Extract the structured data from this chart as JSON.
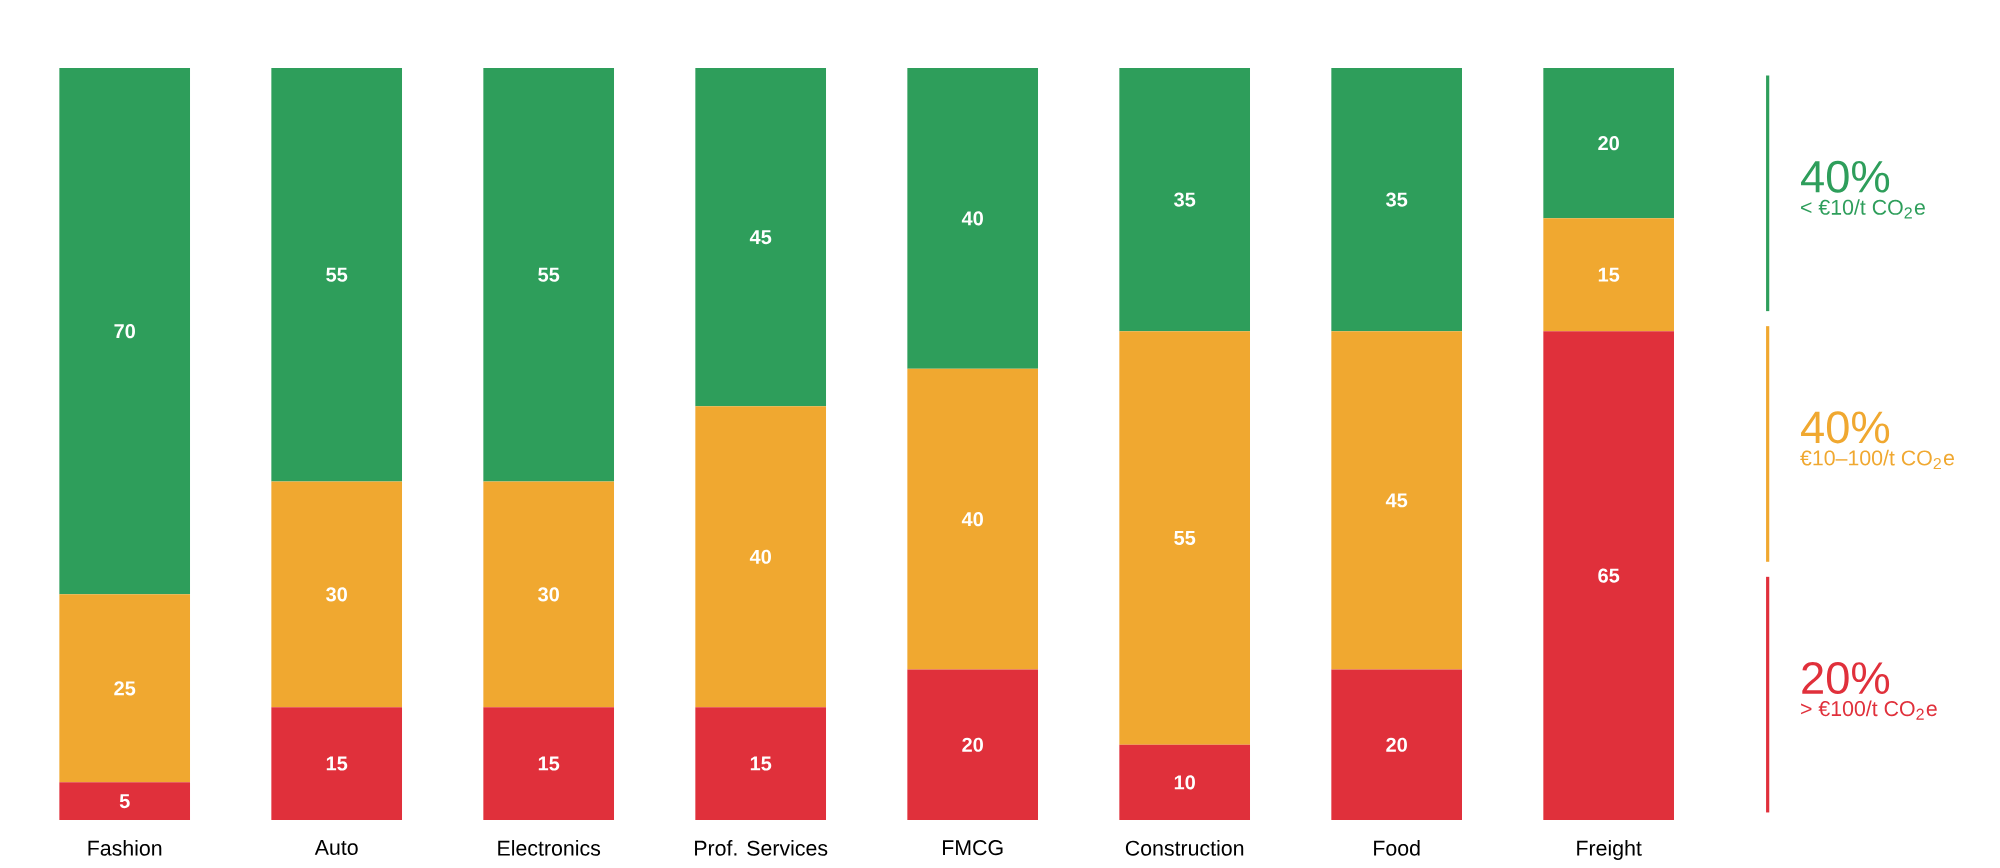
{
  "chart_data": {
    "type": "bar",
    "stacked": true,
    "data_labels": true,
    "legend": "right",
    "categories": [
      "Fashion",
      "Auto",
      "Electronics",
      "Prof. Services",
      "FMCG",
      "Construction",
      "Food",
      "Freight"
    ],
    "series": [
      {
        "name": "> €100/t CO$_{2}$e",
        "color": "#e0303b",
        "values": [
          5,
          15,
          15,
          15,
          20,
          10,
          20,
          65
        ]
      },
      {
        "name": "€10–100/t CO$_{2}$e",
        "color": "#f0a830",
        "values": [
          25,
          30,
          30,
          40,
          40,
          55,
          45,
          15
        ]
      },
      {
        "name": "< €10/t CO$_{2}$e",
        "color": "#2e9e5b",
        "values": [
          70,
          55,
          55,
          45,
          40,
          35,
          35,
          20
        ]
      }
    ],
    "annotations": [
      "40%",
      "40%",
      "20%"
    ]
  }
}
